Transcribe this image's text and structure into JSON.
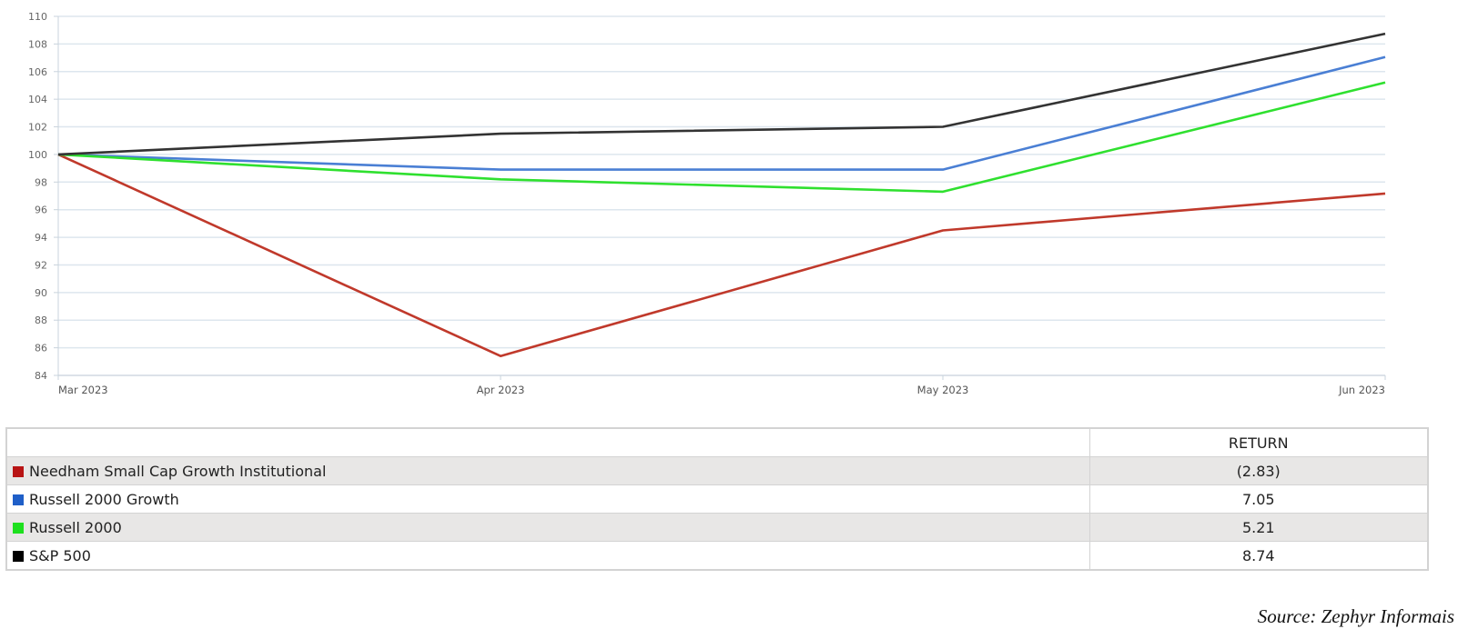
{
  "chart_data": {
    "type": "line",
    "x": [
      "Mar 2023",
      "Apr 2023",
      "May 2023",
      "Jun 2023"
    ],
    "ylim": [
      84,
      110
    ],
    "yticks": [
      84,
      86,
      88,
      90,
      92,
      94,
      96,
      98,
      100,
      102,
      104,
      106,
      108,
      110
    ],
    "grid": true,
    "series": [
      {
        "name": "Needham Small Cap Growth Institutional",
        "color": "#c0392b",
        "swatch": "#b81414",
        "values": [
          100,
          85.4,
          94.5,
          97.17
        ]
      },
      {
        "name": "Russell 2000 Growth",
        "color": "#4a7fd4",
        "swatch": "#1f5fc8",
        "values": [
          100,
          98.9,
          98.9,
          107.05
        ]
      },
      {
        "name": "Russell 2000",
        "color": "#2fe02f",
        "swatch": "#1ee01e",
        "values": [
          100,
          98.2,
          97.3,
          105.21
        ]
      },
      {
        "name": "S&P 500",
        "color": "#333333",
        "swatch": "#000000",
        "values": [
          100,
          101.5,
          102.0,
          108.74
        ]
      }
    ]
  },
  "table": {
    "header": "RETURN",
    "rows": [
      {
        "name": "Needham Small Cap Growth Institutional",
        "return": "(2.83)"
      },
      {
        "name": "Russell 2000 Growth",
        "return": "7.05"
      },
      {
        "name": "Russell 2000",
        "return": "5.21"
      },
      {
        "name": "S&P 500",
        "return": "8.74"
      }
    ]
  },
  "source": "Source: Zephyr Informais"
}
